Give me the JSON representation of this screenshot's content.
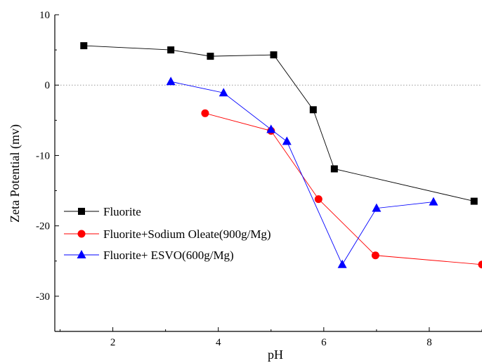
{
  "chart_data": {
    "type": "line",
    "title": "",
    "xlabel": "pH",
    "ylabel": "Zeta Potential (mv)",
    "xlim": [
      0.9,
      9.0
    ],
    "ylim": [
      -35,
      10
    ],
    "xticks": [
      "2",
      "4",
      "6",
      "8"
    ],
    "xtick_values": [
      2,
      4,
      6,
      8
    ],
    "yticks": [
      "10",
      "0",
      "-10",
      "-20",
      "-30"
    ],
    "ytick_values": [
      10,
      0,
      -10,
      -20,
      -30
    ],
    "reference_line": {
      "y": 0,
      "style": "dotted"
    },
    "grid": false,
    "legend_position": "bottom-left",
    "series": [
      {
        "name": "Fluorite",
        "marker": "square",
        "color": "#000000",
        "x": [
          1.45,
          3.1,
          3.85,
          5.05,
          5.8,
          6.2,
          8.85
        ],
        "y": [
          5.6,
          5.0,
          4.1,
          4.3,
          -3.5,
          -11.9,
          -16.5
        ]
      },
      {
        "name": "Fluorite+Sodium Oleate(900g/Mg)",
        "marker": "circle",
        "color": "#ff0000",
        "x": [
          3.75,
          5.0,
          5.9,
          6.98,
          9.0
        ],
        "y": [
          -4.0,
          -6.5,
          -16.2,
          -24.2,
          -25.5
        ]
      },
      {
        "name": "Fluorite+ ESVO(600g/Mg)",
        "marker": "triangle",
        "color": "#0000ff",
        "x": [
          3.1,
          4.1,
          5.0,
          5.3,
          6.35,
          7.0,
          8.08
        ],
        "y": [
          0.5,
          -1.1,
          -6.3,
          -8.0,
          -25.5,
          -17.5,
          -16.6
        ]
      }
    ]
  }
}
